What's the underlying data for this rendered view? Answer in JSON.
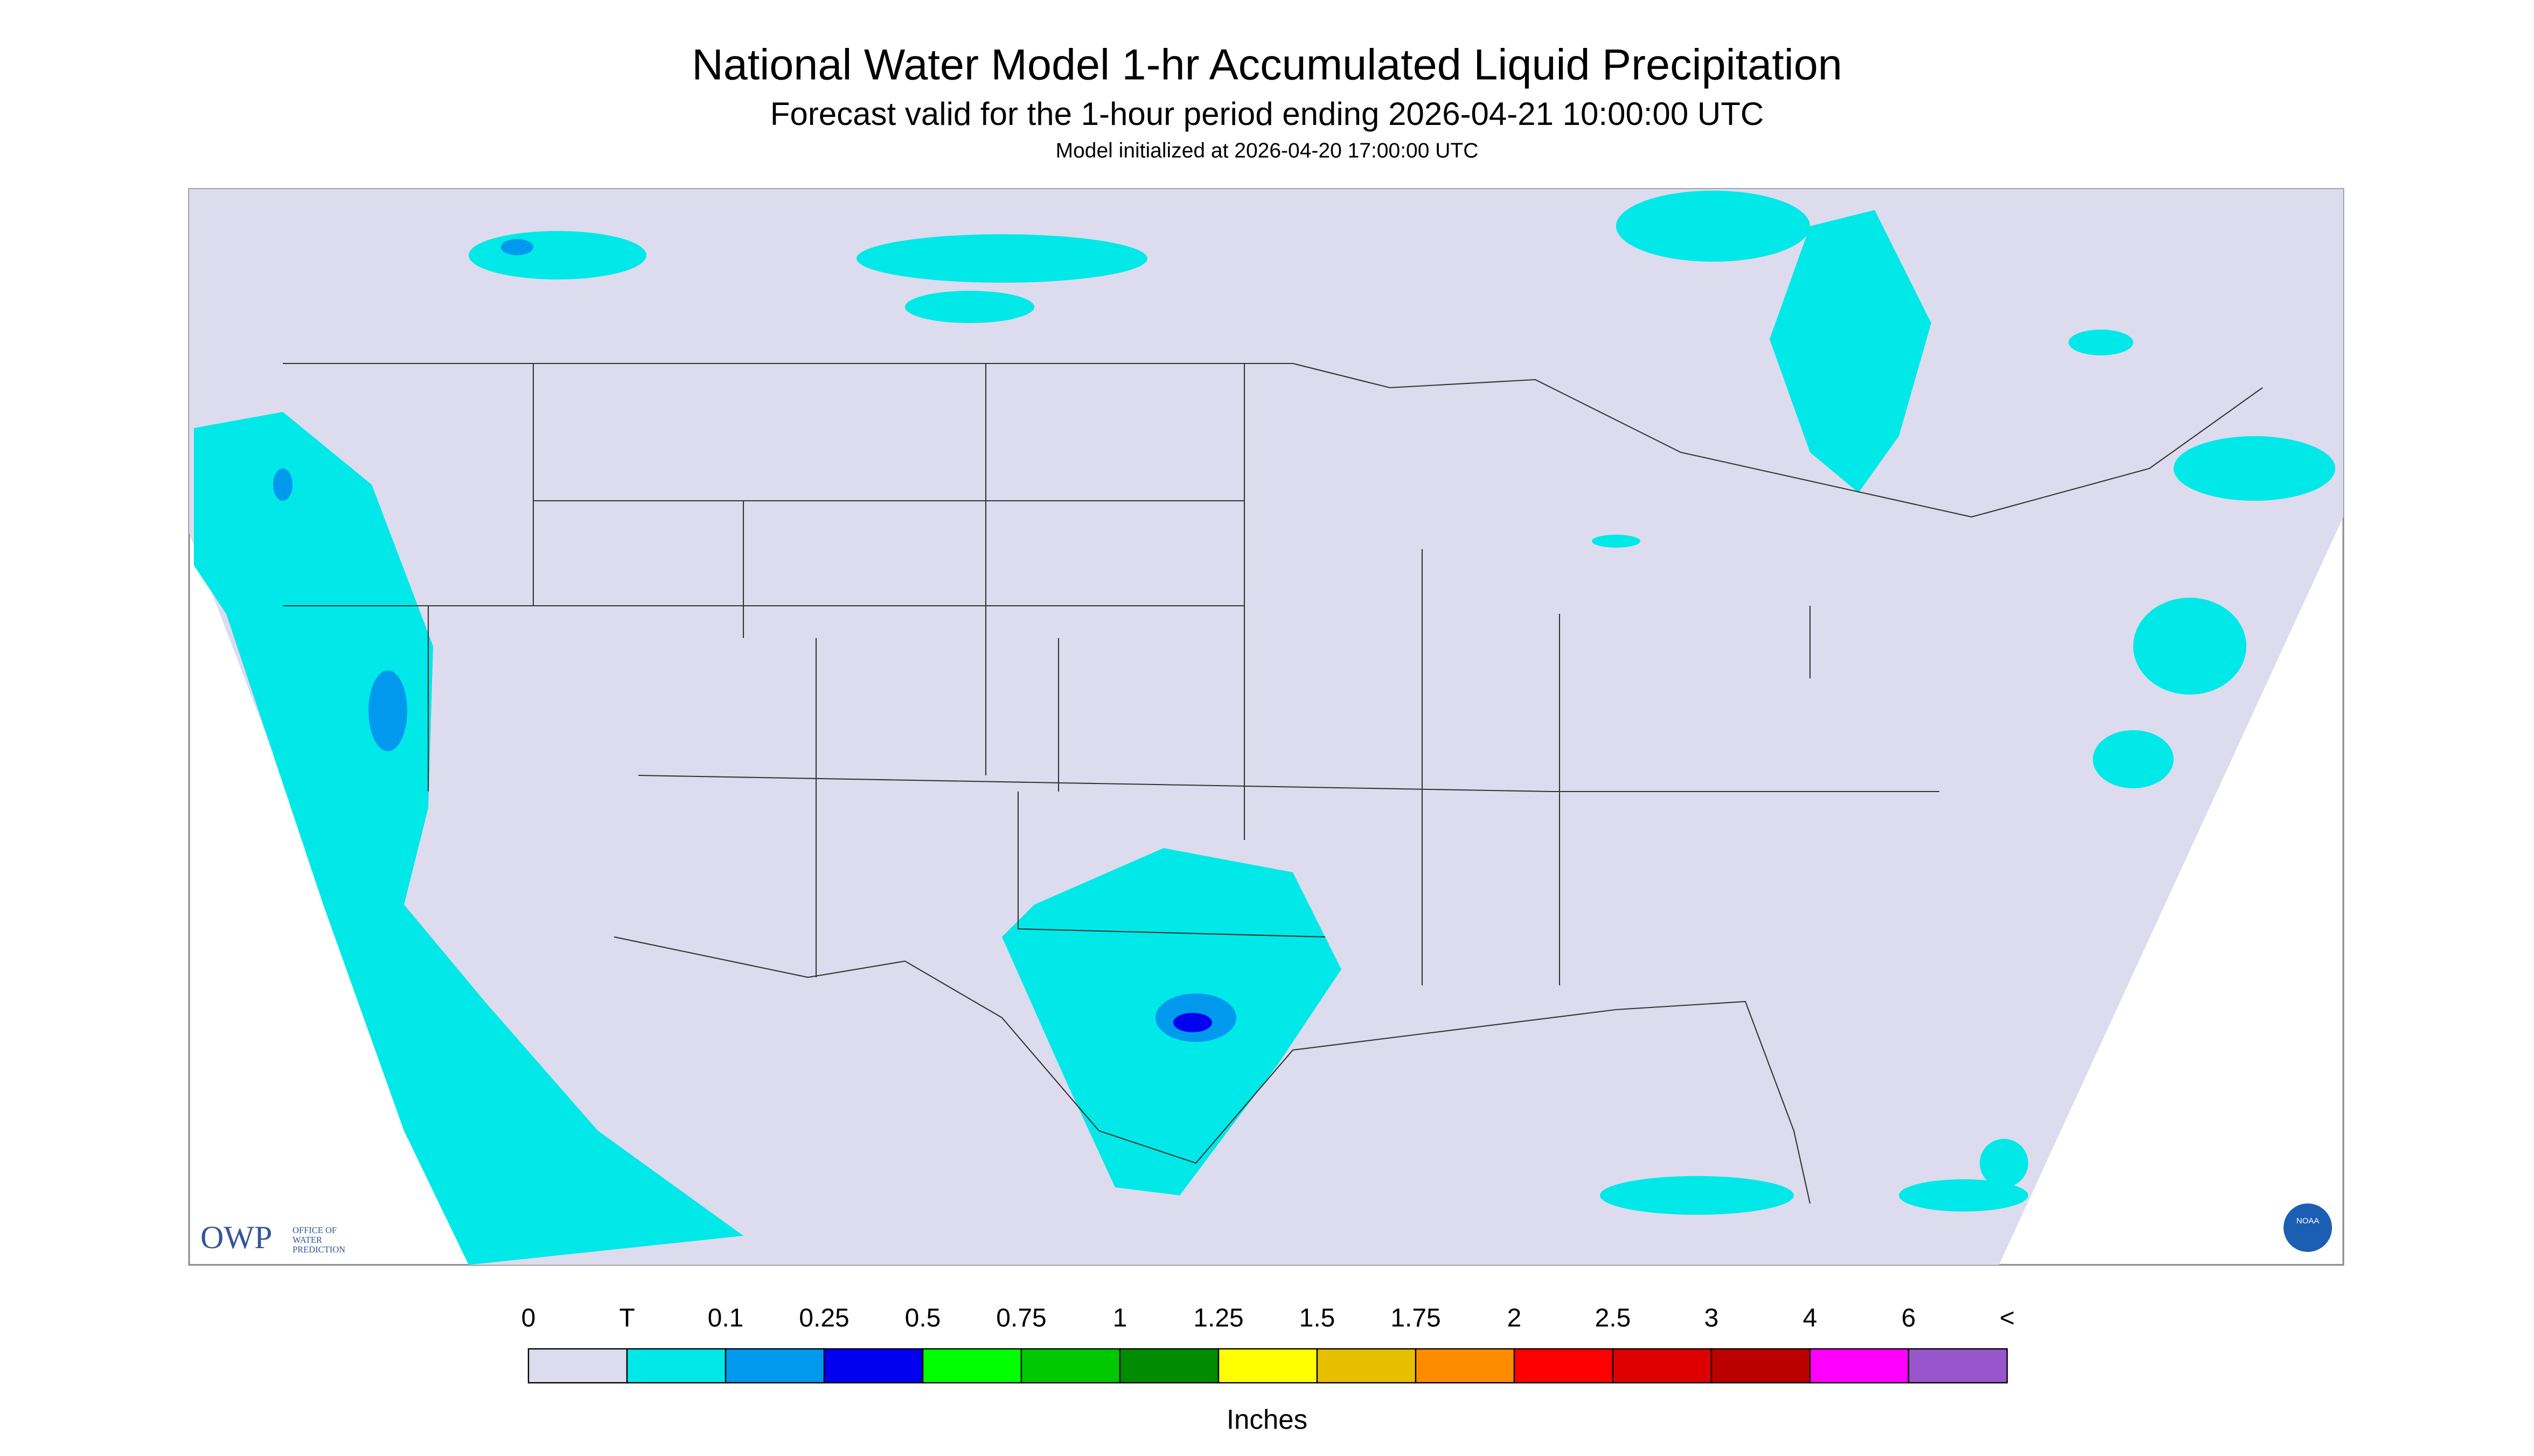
{
  "header": {
    "title": "National Water Model 1-hr Accumulated Liquid Precipitation",
    "subtitle": "Forecast valid for the 1-hour period ending 2026-04-21 10:00:00 UTC",
    "note": "Model initialized at 2026-04-20 17:00:00 UTC"
  },
  "logo": {
    "acronym": "OWP",
    "line1": "OFFICE OF",
    "line2": "WATER",
    "line3": "PREDICTION",
    "agency": "NOAA"
  },
  "legend": {
    "labels": [
      "0",
      "T",
      "0.1",
      "0.25",
      "0.5",
      "0.75",
      "1",
      "1.25",
      "1.5",
      "1.75",
      "2",
      "2.5",
      "3",
      "4",
      "6",
      "<"
    ],
    "colors": [
      "#dcdcee",
      "#00e8e8",
      "#0099ee",
      "#0000ee",
      "#00ff00",
      "#00c800",
      "#008c00",
      "#ffff00",
      "#e6c000",
      "#ff8c00",
      "#ff0000",
      "#dd0000",
      "#bb0000",
      "#ff00ff",
      "#9955cc"
    ],
    "units": "Inches"
  }
}
